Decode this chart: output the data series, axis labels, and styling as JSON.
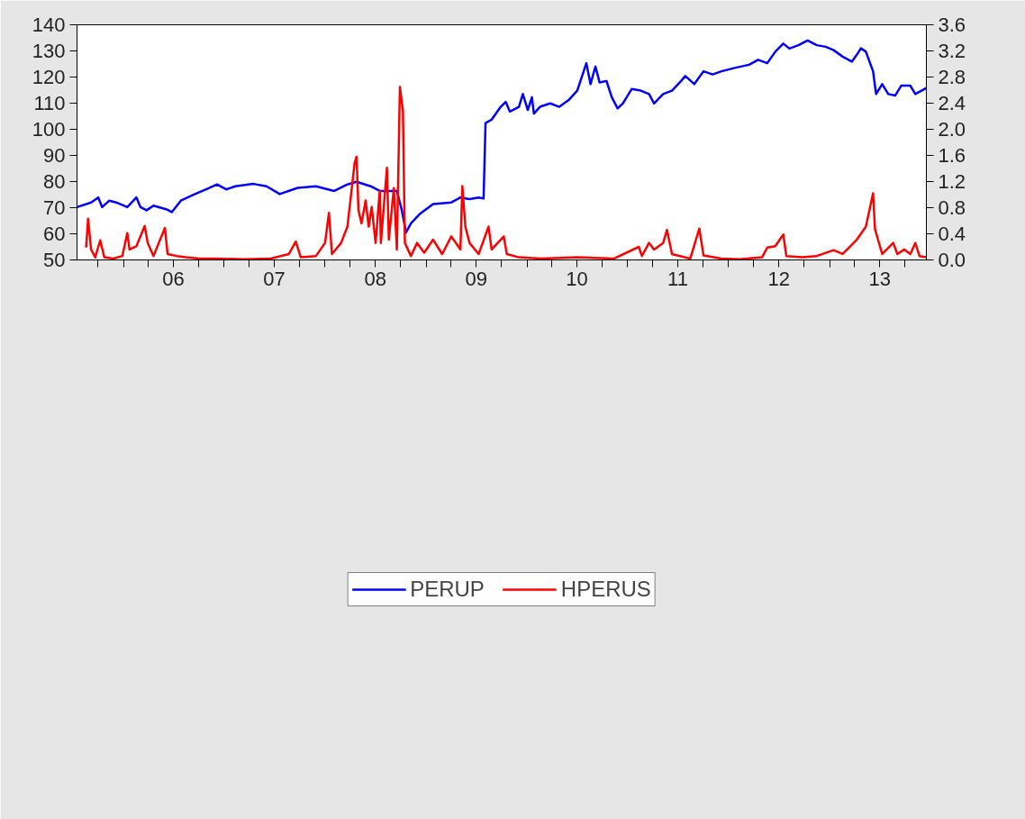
{
  "chart_data": {
    "type": "line",
    "xlim": [
      "2005-07-17",
      "2013-12-17"
    ],
    "xticks": [
      {
        "value": "2005-10-01",
        "label": null
      },
      {
        "value": "2006-01-01",
        "label": null
      },
      {
        "value": "2006-04-01",
        "label": null
      },
      {
        "value": "2006-07-01",
        "label": "06"
      },
      {
        "value": "2006-10-01",
        "label": null
      },
      {
        "value": "2007-01-01",
        "label": null
      },
      {
        "value": "2007-04-01",
        "label": null
      },
      {
        "value": "2007-07-01",
        "label": "07"
      },
      {
        "value": "2007-10-01",
        "label": null
      },
      {
        "value": "2008-01-01",
        "label": null
      },
      {
        "value": "2008-04-01",
        "label": null
      },
      {
        "value": "2008-07-01",
        "label": "08"
      },
      {
        "value": "2008-10-01",
        "label": null
      },
      {
        "value": "2009-01-01",
        "label": null
      },
      {
        "value": "2009-04-01",
        "label": null
      },
      {
        "value": "2009-07-01",
        "label": "09"
      },
      {
        "value": "2009-10-01",
        "label": null
      },
      {
        "value": "2010-01-01",
        "label": null
      },
      {
        "value": "2010-04-01",
        "label": null
      },
      {
        "value": "2010-07-01",
        "label": "10"
      },
      {
        "value": "2010-10-01",
        "label": null
      },
      {
        "value": "2011-01-01",
        "label": null
      },
      {
        "value": "2011-04-01",
        "label": null
      },
      {
        "value": "2011-07-01",
        "label": "11"
      },
      {
        "value": "2011-10-01",
        "label": null
      },
      {
        "value": "2012-01-01",
        "label": null
      },
      {
        "value": "2012-04-01",
        "label": null
      },
      {
        "value": "2012-07-01",
        "label": "12"
      },
      {
        "value": "2012-10-01",
        "label": null
      },
      {
        "value": "2013-01-01",
        "label": null
      },
      {
        "value": "2013-04-01",
        "label": null
      },
      {
        "value": "2013-07-01",
        "label": "13"
      },
      {
        "value": "2013-10-01",
        "label": null
      }
    ],
    "ylim": [
      50,
      140
    ],
    "yticks": [
      50,
      60,
      70,
      80,
      90,
      100,
      110,
      120,
      130,
      140
    ],
    "y2lim": [
      0,
      3.6
    ],
    "y2ticks": [
      {
        "value": 0,
        "label": "0.0"
      },
      {
        "value": 0.4,
        "label": "0.4"
      },
      {
        "value": 0.8,
        "label": "0.8"
      },
      {
        "value": 1.2,
        "label": "1.2"
      },
      {
        "value": 1.6,
        "label": "1.6"
      },
      {
        "value": 2.0,
        "label": "2.0"
      },
      {
        "value": 2.4,
        "label": "2.4"
      },
      {
        "value": 2.8,
        "label": "2.8"
      },
      {
        "value": 3.2,
        "label": "3.2"
      },
      {
        "value": 3.6,
        "label": "3.6"
      }
    ],
    "grid": false,
    "legend": "bottom",
    "series": [
      {
        "name": "PERUP",
        "color": "#0000ff",
        "x": [
          "2005-07-17",
          "2005-09-06",
          "2005-10-02",
          "2005-10-16",
          "2005-11-11",
          "2005-12-06",
          "2006-01-15",
          "2006-02-17",
          "2006-03-04",
          "2006-03-26",
          "2006-04-20",
          "2006-06-10",
          "2006-06-25",
          "2006-07-28",
          "2006-09-17",
          "2006-11-04",
          "2006-12-06",
          "2007-01-08",
          "2007-02-10",
          "2007-04-17",
          "2007-06-03",
          "2007-07-21",
          "2007-09-24",
          "2007-11-29",
          "2008-02-03",
          "2008-03-22",
          "2008-04-24",
          "2008-06-14",
          "2008-07-17",
          "2008-09-17",
          "2008-10-05",
          "2008-10-20",
          "2008-11-07",
          "2008-12-10",
          "2009-01-26",
          "2009-04-02",
          "2009-05-05",
          "2009-06-07",
          "2009-07-10",
          "2009-07-28",
          "2009-08-04",
          "2009-08-26",
          "2009-09-28",
          "2009-10-16",
          "2009-10-31",
          "2009-12-03",
          "2009-12-17",
          "2010-01-04",
          "2010-01-19",
          "2010-01-26",
          "2010-02-17",
          "2010-03-26",
          "2010-04-28",
          "2010-05-31",
          "2010-07-02",
          "2010-08-04",
          "2010-08-19",
          "2010-09-06",
          "2010-09-21",
          "2010-10-16",
          "2010-11-04",
          "2010-11-25",
          "2010-12-14",
          "2011-01-15",
          "2011-02-17",
          "2011-03-19",
          "2011-04-06",
          "2011-05-09",
          "2011-06-10",
          "2011-07-13",
          "2011-07-28",
          "2011-08-30",
          "2011-10-02",
          "2011-11-04",
          "2011-12-06",
          "2012-01-23",
          "2012-03-15",
          "2012-04-17",
          "2012-05-20",
          "2012-06-18",
          "2012-07-17",
          "2012-08-08",
          "2012-09-10",
          "2012-10-13",
          "2012-11-15",
          "2012-12-17",
          "2013-01-15",
          "2013-02-17",
          "2013-03-22",
          "2013-04-09",
          "2013-04-24",
          "2013-05-12",
          "2013-06-07",
          "2013-06-18",
          "2013-07-10",
          "2013-08-01",
          "2013-08-26",
          "2013-09-17",
          "2013-10-20",
          "2013-11-07",
          "2013-12-10",
          "2013-12-17"
        ],
        "values": [
          70.2,
          72.0,
          73.9,
          70.2,
          72.7,
          72.0,
          70.2,
          73.9,
          70.2,
          69.0,
          70.8,
          69.2,
          68.3,
          72.7,
          75.2,
          77.4,
          78.9,
          77.0,
          78.2,
          79.1,
          78.2,
          75.2,
          77.6,
          78.2,
          76.4,
          78.9,
          79.9,
          78.2,
          76.4,
          76.4,
          69.0,
          60.5,
          64.0,
          67.7,
          71.4,
          72.0,
          73.9,
          73.3,
          73.9,
          73.5,
          102.4,
          103.7,
          108.6,
          110.5,
          106.8,
          108.6,
          113.5,
          107.4,
          112.3,
          106.0,
          108.6,
          109.9,
          108.6,
          111.1,
          114.8,
          125.3,
          117.3,
          124.0,
          117.9,
          118.5,
          112.3,
          108.0,
          109.9,
          115.4,
          114.8,
          113.5,
          109.9,
          113.5,
          114.8,
          118.5,
          120.4,
          117.3,
          122.2,
          121.0,
          122.2,
          123.5,
          124.7,
          126.6,
          125.3,
          129.7,
          132.8,
          130.9,
          132.2,
          134.0,
          132.2,
          131.6,
          130.3,
          127.8,
          125.9,
          128.5,
          131.0,
          129.7,
          122.2,
          113.5,
          117.3,
          113.5,
          112.9,
          116.7,
          116.7,
          113.5,
          115.4,
          115.8
        ]
      },
      {
        "name": "HPERUS",
        "color": "#ff0000",
        "axis": "y2",
        "x": [
          "2005-08-19",
          "2005-08-26",
          "2005-09-06",
          "2005-09-21",
          "2005-10-09",
          "2005-10-24",
          "2005-11-25",
          "2005-12-28",
          "2006-01-15",
          "2006-01-23",
          "2006-02-17",
          "2006-03-19",
          "2006-03-30",
          "2006-04-20",
          "2006-05-31",
          "2006-06-10",
          "2006-07-13",
          "2006-08-15",
          "2006-10-02",
          "2006-12-06",
          "2007-03-15",
          "2007-06-18",
          "2007-08-23",
          "2007-09-17",
          "2007-10-05",
          "2007-11-29",
          "2008-01-01",
          "2008-01-15",
          "2008-01-26",
          "2008-02-28",
          "2008-03-22",
          "2008-04-17",
          "2008-04-24",
          "2008-05-01",
          "2008-05-12",
          "2008-05-27",
          "2008-06-07",
          "2008-06-18",
          "2008-07-02",
          "2008-07-17",
          "2008-07-21",
          "2008-08-12",
          "2008-08-19",
          "2008-09-06",
          "2008-09-17",
          "2008-09-28",
          "2008-10-09",
          "2008-10-16",
          "2008-11-07",
          "2008-11-29",
          "2008-12-25",
          "2009-01-26",
          "2009-02-28",
          "2009-04-02",
          "2009-05-05",
          "2009-05-12",
          "2009-05-23",
          "2009-06-07",
          "2009-07-10",
          "2009-08-15",
          "2009-08-26",
          "2009-10-09",
          "2009-10-20",
          "2009-12-03",
          "2010-02-21",
          "2010-07-02",
          "2010-11-11",
          "2011-02-10",
          "2011-02-21",
          "2011-03-19",
          "2011-04-06",
          "2011-05-09",
          "2011-05-23",
          "2011-06-10",
          "2011-08-15",
          "2011-09-17",
          "2011-10-02",
          "2011-12-06",
          "2012-02-10",
          "2012-05-01",
          "2012-05-20",
          "2012-06-18",
          "2012-07-17",
          "2012-07-28",
          "2012-09-24",
          "2012-11-15",
          "2013-01-15",
          "2013-02-17",
          "2013-04-09",
          "2013-05-12",
          "2013-06-07",
          "2013-06-14",
          "2013-07-10",
          "2013-08-19",
          "2013-09-03",
          "2013-09-28",
          "2013-10-20",
          "2013-11-07",
          "2013-11-22",
          "2013-12-17"
        ],
        "values": [
          0.19,
          0.63,
          0.16,
          0.04,
          0.3,
          0.04,
          0.02,
          0.06,
          0.41,
          0.16,
          0.21,
          0.52,
          0.26,
          0.06,
          0.49,
          0.09,
          0.06,
          0.04,
          0.02,
          0.02,
          0.01,
          0.02,
          0.09,
          0.28,
          0.04,
          0.06,
          0.26,
          0.72,
          0.09,
          0.26,
          0.51,
          1.48,
          1.58,
          0.76,
          0.56,
          0.91,
          0.51,
          0.81,
          0.26,
          1.06,
          0.26,
          1.41,
          0.31,
          1.1,
          0.16,
          2.65,
          2.28,
          0.26,
          0.06,
          0.26,
          0.11,
          0.31,
          0.09,
          0.36,
          0.16,
          1.13,
          0.51,
          0.26,
          0.09,
          0.51,
          0.16,
          0.36,
          0.09,
          0.04,
          0.02,
          0.04,
          0.02,
          0.2,
          0.06,
          0.26,
          0.16,
          0.26,
          0.46,
          0.09,
          0.02,
          0.48,
          0.07,
          0.02,
          0.01,
          0.04,
          0.19,
          0.21,
          0.39,
          0.06,
          0.04,
          0.06,
          0.15,
          0.09,
          0.31,
          0.51,
          1.02,
          0.47,
          0.09,
          0.26,
          0.09,
          0.16,
          0.09,
          0.26,
          0.06,
          0.04
        ]
      }
    ]
  }
}
